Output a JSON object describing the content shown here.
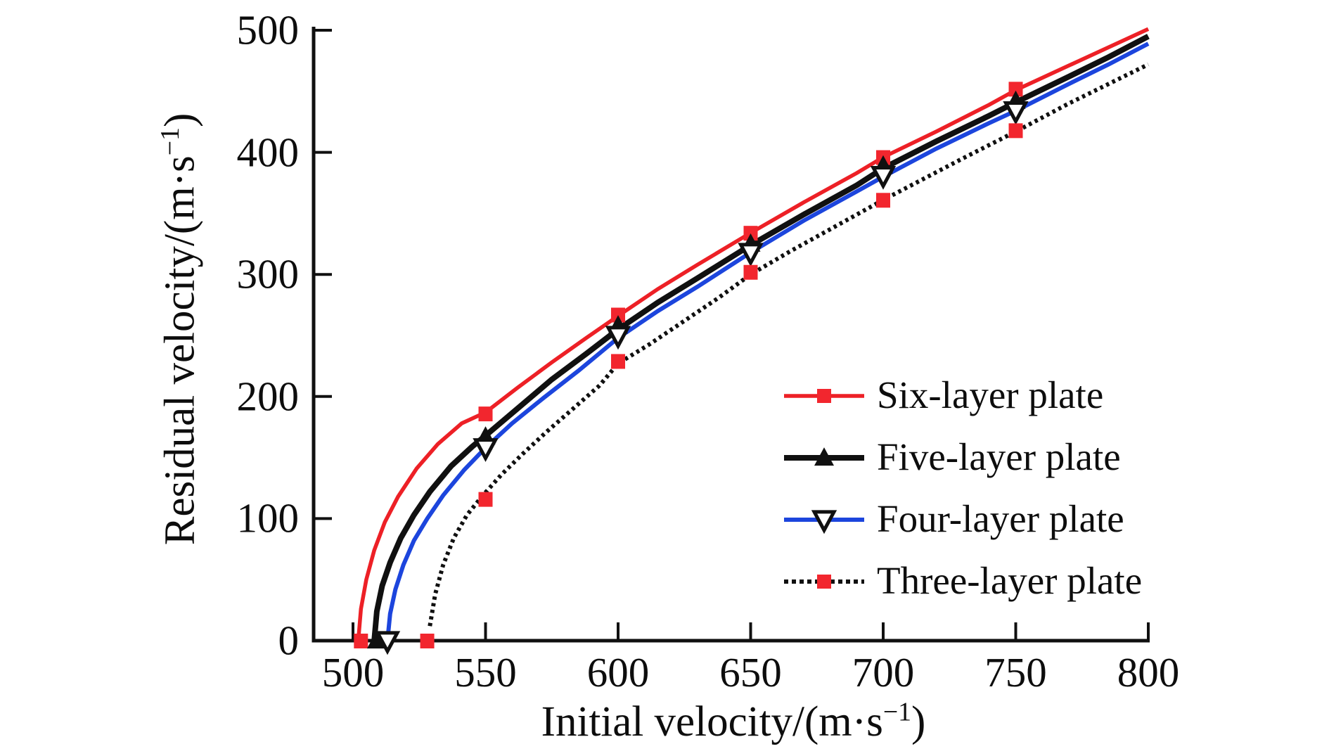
{
  "figure": {
    "background": "#ffffff",
    "text_color": "#0d0d0d"
  },
  "chart_data": {
    "type": "line",
    "title": "",
    "xlabel": {
      "prefix": "Initial velocity/(m·s",
      "sup": "−1",
      "suffix": ")"
    },
    "ylabel": {
      "prefix": "Residual velocity/(m·s",
      "sup": "−1",
      "suffix": ")"
    },
    "xlim": [
      485,
      800
    ],
    "ylim": [
      0,
      500
    ],
    "x_ticks": [
      500,
      550,
      600,
      650,
      700,
      750,
      800
    ],
    "y_ticks": [
      0,
      100,
      200,
      300,
      400,
      500
    ],
    "grid": false,
    "legend_position": "center-right",
    "axis": {
      "color": "#101010",
      "spine_width": 5,
      "tick_width": 4,
      "tick_length": 26
    },
    "series": [
      {
        "name": "six-layer-plate",
        "label": "Six-layer plate",
        "color": "#ed2026",
        "line": "solid",
        "line_width": 5.5,
        "marker": "filled-square",
        "marker_color": "#f2262e",
        "marker_size": 20,
        "ballistic_limit": 503,
        "points": [
          [
            503,
            0
          ],
          [
            550,
            186
          ],
          [
            600,
            267
          ],
          [
            650,
            334
          ],
          [
            700,
            396
          ],
          [
            750,
            452
          ]
        ],
        "curve": [
          [
            502,
            0
          ],
          [
            503,
            26
          ],
          [
            505,
            50
          ],
          [
            508,
            74
          ],
          [
            512,
            97
          ],
          [
            517,
            118
          ],
          [
            524,
            141
          ],
          [
            532,
            161
          ],
          [
            541,
            178
          ],
          [
            550,
            187
          ],
          [
            562,
            207
          ],
          [
            575,
            228
          ],
          [
            588,
            248
          ],
          [
            600,
            266
          ],
          [
            615,
            288
          ],
          [
            630,
            308
          ],
          [
            650,
            334
          ],
          [
            670,
            359
          ],
          [
            690,
            383
          ],
          [
            700,
            396
          ],
          [
            720,
            417
          ],
          [
            740,
            439
          ],
          [
            750,
            451
          ],
          [
            770,
            471
          ],
          [
            785,
            486
          ],
          [
            800,
            501
          ]
        ]
      },
      {
        "name": "five-layer-plate",
        "label": "Five-layer plate",
        "color": "#101010",
        "line": "solid",
        "line_width": 8,
        "marker": "filled-triangle-up",
        "marker_color": "#101010",
        "marker_size": 28,
        "ballistic_limit": 509,
        "points": [
          [
            509,
            0
          ],
          [
            550,
            167
          ],
          [
            600,
            258
          ],
          [
            650,
            325
          ],
          [
            700,
            389
          ],
          [
            750,
            442
          ]
        ],
        "curve": [
          [
            508,
            0
          ],
          [
            509,
            24
          ],
          [
            511,
            45
          ],
          [
            514,
            64
          ],
          [
            518,
            84
          ],
          [
            523,
            103
          ],
          [
            529,
            122
          ],
          [
            537,
            143
          ],
          [
            545,
            159
          ],
          [
            550,
            168
          ],
          [
            562,
            190
          ],
          [
            575,
            214
          ],
          [
            588,
            235
          ],
          [
            600,
            255
          ],
          [
            615,
            277
          ],
          [
            630,
            297
          ],
          [
            650,
            324
          ],
          [
            670,
            349
          ],
          [
            690,
            373
          ],
          [
            700,
            387
          ],
          [
            720,
            409
          ],
          [
            740,
            430
          ],
          [
            750,
            441
          ],
          [
            770,
            462
          ],
          [
            785,
            478
          ],
          [
            800,
            495
          ]
        ]
      },
      {
        "name": "four-layer-plate",
        "label": "Four-layer plate",
        "color": "#1c45dd",
        "line": "solid",
        "line_width": 6,
        "marker": "open-triangle-down",
        "marker_color": "#101010",
        "marker_fill": "#ffffff",
        "marker_size": 28,
        "ballistic_limit": 513,
        "points": [
          [
            513,
            0
          ],
          [
            550,
            158
          ],
          [
            600,
            250
          ],
          [
            650,
            318
          ],
          [
            700,
            381
          ],
          [
            750,
            434
          ]
        ],
        "curve": [
          [
            513,
            0
          ],
          [
            514,
            22
          ],
          [
            516,
            42
          ],
          [
            519,
            62
          ],
          [
            523,
            82
          ],
          [
            528,
            100
          ],
          [
            534,
            119
          ],
          [
            542,
            140
          ],
          [
            550,
            158
          ],
          [
            560,
            178
          ],
          [
            572,
            199
          ],
          [
            585,
            221
          ],
          [
            600,
            248
          ],
          [
            615,
            270
          ],
          [
            630,
            290
          ],
          [
            650,
            318
          ],
          [
            670,
            344
          ],
          [
            690,
            368
          ],
          [
            700,
            380
          ],
          [
            720,
            403
          ],
          [
            740,
            424
          ],
          [
            750,
            434
          ],
          [
            770,
            456
          ],
          [
            785,
            472
          ],
          [
            800,
            489
          ]
        ]
      },
      {
        "name": "three-layer-plate",
        "label": "Three-layer plate",
        "color": "#101010",
        "line": "dotted",
        "line_width": 6,
        "marker": "filled-square",
        "marker_color": "#f2262e",
        "marker_size": 20,
        "ballistic_limit": 528,
        "points": [
          [
            528,
            0
          ],
          [
            550,
            116
          ],
          [
            600,
            229
          ],
          [
            650,
            302
          ],
          [
            700,
            361
          ],
          [
            750,
            418
          ]
        ],
        "curve": [
          [
            529,
            12
          ],
          [
            531,
            38
          ],
          [
            534,
            62
          ],
          [
            538,
            84
          ],
          [
            543,
            103
          ],
          [
            549,
            119
          ],
          [
            556,
            136
          ],
          [
            564,
            153
          ],
          [
            573,
            171
          ],
          [
            583,
            190
          ],
          [
            593,
            209
          ],
          [
            600,
            227
          ],
          [
            612,
            243
          ],
          [
            625,
            262
          ],
          [
            638,
            281
          ],
          [
            650,
            300
          ],
          [
            665,
            319
          ],
          [
            680,
            337
          ],
          [
            700,
            361
          ],
          [
            715,
            378
          ],
          [
            730,
            395
          ],
          [
            750,
            417
          ],
          [
            770,
            440
          ],
          [
            785,
            456
          ],
          [
            800,
            472
          ]
        ]
      }
    ]
  }
}
